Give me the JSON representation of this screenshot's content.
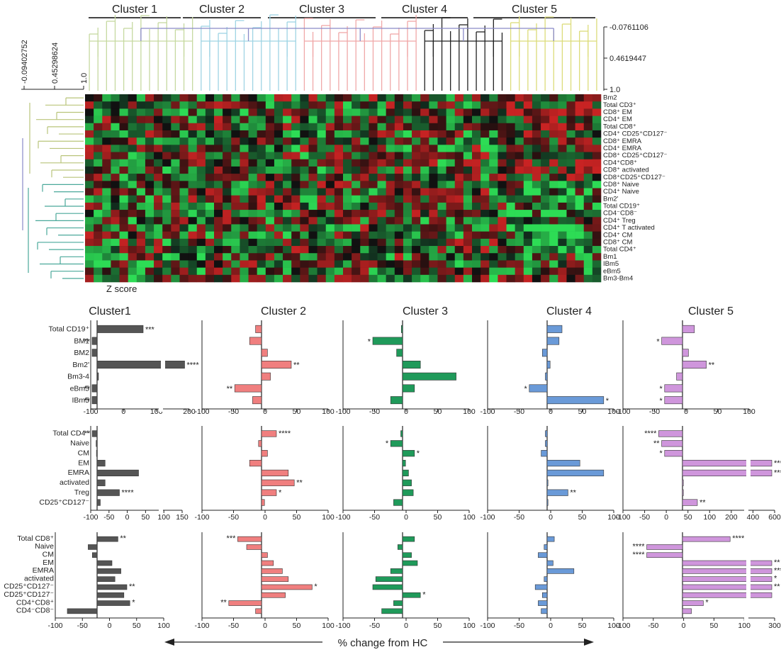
{
  "heatmap": {
    "clusters": [
      "Cluster 1",
      "Cluster 2",
      "Cluster 3",
      "Cluster 4",
      "Cluster 5"
    ],
    "cluster_colors": [
      "#c6d9a0",
      "#9fd4e4",
      "#f0a8a8",
      "#222222",
      "#dcdc7a"
    ],
    "col_tree_ticks": [
      "-0.0761106",
      "0.4619447",
      "1.0"
    ],
    "row_tree_ticks": [
      "-0.09402752",
      "0.45298624",
      "1.0"
    ],
    "row_labels": [
      "Bm2",
      "Total CD3⁺",
      "CD8⁺ EM",
      "CD4⁺ EM",
      "Total CD8⁺",
      "CD4⁺ CD25⁺CD127⁻",
      "CD8⁺ EMRA",
      "CD4⁺ EMRA",
      "CD8⁺ CD25⁺CD127⁻",
      "CD4⁺CD8⁺",
      "CD8⁺ activated",
      "CD8⁺CD25⁺CD127⁻",
      "CD8⁺ Naive",
      "CD4⁺ Naive",
      "Bm2'",
      "Total CD19⁺",
      "CD4⁻CD8⁻",
      "CD4⁺ Treg",
      "CD4⁺ T activated",
      "CD4⁺ CM",
      "CD8⁺ CM",
      "Total CD4⁺",
      "Bm1",
      "IBm5",
      "eBm5",
      "Bm3-Bm4"
    ],
    "zscore_label": "Z score"
  },
  "colors": {
    "c1": "#555555",
    "c2": "#f07f7f",
    "c3": "#1f9a5a",
    "c4": "#6a9ad8",
    "c5": "#cf96dc"
  },
  "chart_data": [
    {
      "type": "bar",
      "title": "Cluster1",
      "row": 1,
      "color": "#555555",
      "categories": [
        "Total CD19⁺",
        "BM1",
        "BM2",
        "Bm2'",
        "Bm3-4",
        "eBm5",
        "IBm5"
      ],
      "values": [
        100,
        -70,
        -20,
        190,
        3,
        -60,
        -60
      ],
      "sig": [
        "***",
        "**",
        "",
        "****",
        "",
        "**",
        "**"
      ],
      "xticks": [
        "-100",
        "0",
        "100",
        "200"
      ],
      "broken_axis": true
    },
    {
      "type": "bar",
      "title": "Cluster 2",
      "row": 1,
      "color": "#f07f7f",
      "values": [
        -10,
        -20,
        10,
        50,
        15,
        -45,
        -15
      ],
      "sig": [
        "",
        "",
        "",
        "**",
        "",
        "**",
        ""
      ],
      "xticks": [
        "-100",
        "-50",
        "0",
        "50",
        "100"
      ],
      "xlim": [
        -100,
        100
      ]
    },
    {
      "type": "bar",
      "title": "Cluster 3",
      "row": 1,
      "color": "#1f9a5a",
      "values": [
        -2,
        -50,
        -10,
        30,
        90,
        20,
        -20
      ],
      "sig": [
        "",
        "*",
        "",
        "",
        "",
        "",
        ""
      ],
      "xticks": [
        "-100",
        "-50",
        "0",
        "50",
        "100"
      ],
      "xlim": [
        -100,
        100
      ]
    },
    {
      "type": "bar",
      "title": "Cluster 4",
      "row": 1,
      "color": "#6a9ad8",
      "values": [
        25,
        20,
        -8,
        5,
        -3,
        -30,
        95
      ],
      "sig": [
        "",
        "",
        "",
        "",
        "",
        "*",
        "*"
      ],
      "xticks": [
        "-100",
        "-50",
        "0",
        "50",
        "100"
      ],
      "xlim": [
        -100,
        100
      ]
    },
    {
      "type": "bar",
      "title": "Cluster 5",
      "row": 1,
      "color": "#cf96dc",
      "values": [
        20,
        -35,
        10,
        40,
        -10,
        -30,
        -30
      ],
      "sig": [
        "",
        "*",
        "",
        "**",
        "",
        "*",
        "*"
      ],
      "xticks": [
        "-100",
        "-50",
        "0",
        "50",
        "100"
      ],
      "xlim": [
        -100,
        100
      ]
    },
    {
      "type": "bar",
      "row": 2,
      "color": "#555555",
      "categories": [
        "Total CD4⁺",
        "Naive",
        "CM",
        "EM",
        "EMRA",
        "activated",
        "Treg",
        "CD25⁺CD127⁻"
      ],
      "values": [
        -15,
        -3,
        -2,
        25,
        130,
        25,
        70,
        10
      ],
      "sig": [
        "**",
        "",
        "",
        "",
        "",
        "",
        "****",
        ""
      ],
      "xticks": [
        "-100",
        "-50",
        "0",
        "50",
        "100",
        "150"
      ],
      "broken_axis": true
    },
    {
      "type": "bar",
      "row": 2,
      "color": "#f07f7f",
      "values": [
        25,
        -5,
        10,
        -20,
        45,
        55,
        25,
        5
      ],
      "sig": [
        "****",
        "",
        "",
        "",
        "",
        "**",
        "*",
        ""
      ],
      "xticks": [
        "-100",
        "-50",
        "0",
        "50",
        "100"
      ],
      "xlim": [
        -100,
        100
      ]
    },
    {
      "type": "bar",
      "row": 2,
      "color": "#1f9a5a",
      "values": [
        -3,
        -20,
        20,
        5,
        10,
        15,
        18,
        -15
      ],
      "sig": [
        "",
        "*",
        "*",
        "",
        "",
        "",
        "",
        ""
      ],
      "xticks": [
        "-100",
        "-50",
        "0",
        "50",
        "100"
      ],
      "xlim": [
        -100,
        100
      ]
    },
    {
      "type": "bar",
      "row": 2,
      "color": "#6a9ad8",
      "values": [
        -3,
        -3,
        -10,
        55,
        95,
        0,
        35,
        0
      ],
      "sig": [
        "",
        "",
        "",
        "",
        "",
        "",
        "**",
        ""
      ],
      "xticks": [
        "-100",
        "-50",
        "0",
        "50",
        "100"
      ],
      "xlim": [
        -100,
        100
      ]
    },
    {
      "type": "bar",
      "row": 2,
      "color": "#cf96dc",
      "values": [
        -40,
        -35,
        -30,
        300,
        500,
        0,
        0,
        25
      ],
      "sig": [
        "****",
        "**",
        "*",
        "****",
        "****",
        "",
        "",
        "**"
      ],
      "xticks": [
        "-100",
        "-50",
        "0",
        "50",
        "100",
        "200",
        "400",
        "600"
      ],
      "broken_axis": true
    },
    {
      "type": "bar",
      "row": 3,
      "color": "#555555",
      "categories": [
        "Total CD8⁺",
        "Naive",
        "CM",
        "EM",
        "EMRA",
        "activated",
        "CD25⁺CD127⁻",
        "CD25⁺CD127⁻",
        "CD4⁺CD8⁺",
        "CD4⁻CD8⁻"
      ],
      "values": [
        35,
        -15,
        -8,
        25,
        40,
        30,
        50,
        45,
        55,
        -50
      ],
      "sig": [
        "**",
        "",
        "",
        "",
        "",
        "",
        "**",
        "",
        "*",
        ""
      ],
      "xticks": [
        "-100",
        "-50",
        "0",
        "50",
        "100"
      ],
      "xlim": [
        -100,
        100
      ]
    },
    {
      "type": "bar",
      "row": 3,
      "color": "#f07f7f",
      "values": [
        -40,
        -25,
        10,
        20,
        35,
        45,
        85,
        40,
        -55,
        -10
      ],
      "sig": [
        "***",
        "",
        "",
        "",
        "",
        "",
        "*",
        "",
        "**",
        ""
      ],
      "xticks": [
        "-100",
        "-50",
        "0",
        "50",
        "100"
      ],
      "xlim": [
        -100,
        100
      ]
    },
    {
      "type": "bar",
      "row": 3,
      "color": "#1f9a5a",
      "values": [
        20,
        -8,
        15,
        25,
        -20,
        -45,
        -50,
        30,
        -15,
        -35
      ],
      "sig": [
        "",
        "",
        "",
        "",
        "",
        "",
        "",
        "*",
        "",
        ""
      ],
      "xticks": [
        "-100",
        "-50",
        "0",
        "50",
        "100"
      ],
      "xlim": [
        -100,
        100
      ]
    },
    {
      "type": "bar",
      "row": 3,
      "color": "#6a9ad8",
      "values": [
        12,
        -5,
        -15,
        10,
        45,
        -5,
        -20,
        -8,
        -15,
        -10
      ],
      "sig": [
        "",
        "",
        "",
        "",
        "",
        "",
        "",
        "",
        "",
        ""
      ],
      "xticks": [
        "-100",
        "-50",
        "0",
        "50",
        "100"
      ],
      "xlim": [
        -100,
        100
      ]
    },
    {
      "type": "bar",
      "row": 3,
      "color": "#cf96dc",
      "values": [
        80,
        -60,
        -60,
        250,
        240,
        200,
        260,
        220,
        35,
        15
      ],
      "sig": [
        "****",
        "****",
        "****",
        "**",
        "****",
        "*",
        "**",
        "",
        "*",
        ""
      ],
      "xticks": [
        "-100",
        "-50",
        "0",
        "50",
        "100",
        "300"
      ],
      "broken_axis": true
    }
  ],
  "x_axis_caption": "% change from HC"
}
